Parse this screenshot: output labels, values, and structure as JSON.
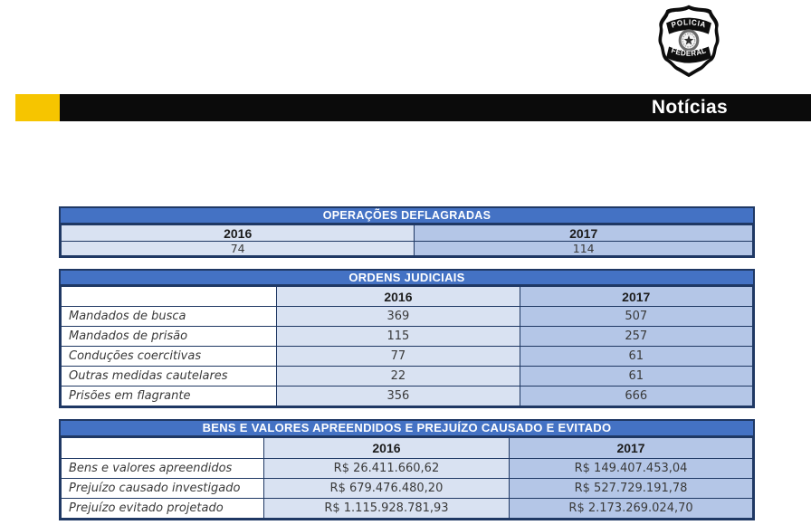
{
  "logo": {
    "top_text": "POLICIA",
    "bottom_text": "FEDERAL"
  },
  "banner": {
    "title": "Notícias"
  },
  "colors": {
    "table_title_bg": "#4472C4",
    "col_2016_bg": "#D9E2F2",
    "col_2017_bg": "#B4C6E7",
    "table_border": "#1F3864",
    "banner_bg": "#0B0B0B",
    "accent_yellow": "#F6C500"
  },
  "tables": [
    {
      "title": "OPERAÇÕES DEFLAGRADAS",
      "columns": [
        "2016",
        "2017"
      ],
      "rows": [
        [
          "74",
          "114"
        ]
      ]
    },
    {
      "title": "ORDENS JUDICIAIS",
      "columns": [
        "",
        "2016",
        "2017"
      ],
      "rows": [
        [
          "Mandados de busca",
          "369",
          "507"
        ],
        [
          "Mandados de prisão",
          "115",
          "257"
        ],
        [
          "Conduções coercitivas",
          "77",
          "61"
        ],
        [
          "Outras medidas cautelares",
          "22",
          "61"
        ],
        [
          "Prisões em flagrante",
          "356",
          "666"
        ]
      ]
    },
    {
      "title": "BENS E VALORES APREENDIDOS E PREJUÍZO CAUSADO E EVITADO",
      "columns": [
        "",
        "2016",
        "2017"
      ],
      "rows": [
        [
          "Bens e valores apreendidos",
          "R$ 26.411.660,62",
          "R$ 149.407.453,04"
        ],
        [
          "Prejuízo causado investigado",
          "R$ 679.476.480,20",
          "R$ 527.729.191,78"
        ],
        [
          "Prejuízo evitado projetado",
          "R$ 1.115.928.781,93",
          "R$ 2.173.269.024,70"
        ]
      ]
    }
  ]
}
